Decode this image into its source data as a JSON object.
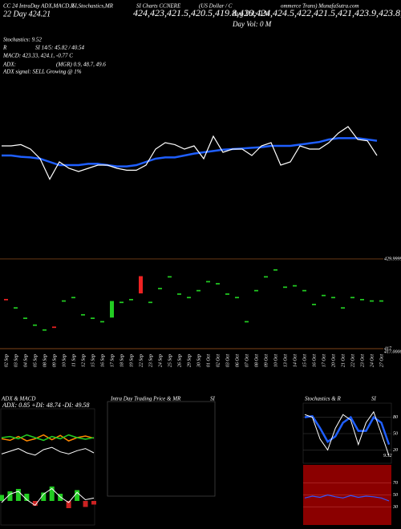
{
  "chart_data": {
    "type": "candlestick",
    "header": [
      "CC 24 IntraDay ADX,MACD,R",
      "SI,Stochastics,MR",
      "SI Charts CCNERE",
      "(US Dollar / C",
      "ommerce Trans) MunafaSutra.com"
    ],
    "day_price": "22 Day 424.21",
    "close": [
      424.0,
      423.0,
      421.5,
      420.5,
      419.8,
      420.0,
      424.0,
      424.5,
      422.0,
      421.5,
      421.0,
      423.9,
      423.8,
      424.2,
      425.0,
      423.8,
      425.8,
      427.5,
      425.0,
      424.5,
      425.5,
      426.8,
      426.5,
      425.0,
      424.5,
      421.0,
      425.5,
      427.5,
      428.5,
      426.0,
      426.2,
      425.5,
      423.5,
      424.8,
      424.5,
      423.0,
      424.5,
      424.2,
      424.0,
      424.0
    ],
    "avg_vol": "Avg Vol: 0  M",
    "day_vol": "Day Vol: 0  M",
    "stats": [
      "Stochastics: 9.52",
      "R",
      "SI 14/5: 45.82 / 40.54",
      "MACD: 423.33, 424.1, -0.77 C",
      "ADX:",
      "(MGR) 0.9, 48.7, 49.6",
      "ADX  signal: SELL Growing @ 1%"
    ],
    "categories": [
      "02 Sep",
      "03 Sep",
      "04 Sep",
      "05 Sep",
      "08 Sep",
      "09 Sep",
      "10 Sep",
      "11 Sep",
      "12 Sep",
      "15 Sep",
      "16 Sep",
      "17 Sep",
      "18 Sep",
      "19 Sep",
      "22 Sep",
      "23 Sep",
      "24 Sep",
      "25 Sep",
      "26 Sep",
      "29 Sep",
      "30 Sep",
      "01 Oct",
      "02 Oct",
      "03 Oct",
      "06 Oct",
      "07 Oct",
      "08 Oct",
      "09 Oct",
      "10 Oct",
      "13 Oct",
      "14 Oct",
      "15 Oct",
      "16 Oct",
      "17 Oct",
      "20 Oct",
      "21 Oct",
      "22 Oct",
      "23 Oct",
      "24 Oct",
      "27 Oct"
    ],
    "price_line": [
      60,
      60,
      62,
      55,
      40,
      8,
      35,
      25,
      20,
      25,
      30,
      30,
      25,
      22,
      22,
      30,
      55,
      65,
      62,
      55,
      60,
      40,
      75,
      50,
      55,
      55,
      45,
      60,
      65,
      30,
      35,
      60,
      55,
      55,
      65,
      80,
      90,
      70,
      68,
      45
    ],
    "ma_line": [
      45,
      45,
      43,
      42,
      40,
      35,
      30,
      30,
      30,
      32,
      32,
      30,
      28,
      28,
      30,
      35,
      40,
      42,
      42,
      45,
      48,
      50,
      52,
      54,
      55,
      56,
      57,
      58,
      60,
      60,
      60,
      62,
      64,
      66,
      70,
      72,
      72,
      72,
      70,
      68
    ],
    "line_ylim": [
      0,
      100
    ],
    "open": [
      424.2,
      422.8,
      421.3,
      420.3,
      419.6,
      420.2,
      423.8,
      424.3,
      421.8,
      421.3,
      420.8,
      421.5,
      423.6,
      424.0,
      427.5,
      423.6,
      425.6,
      427.3,
      424.8,
      424.3,
      425.3,
      426.6,
      426.3,
      424.8,
      424.3,
      420.8,
      425.3,
      427.3,
      428.3,
      425.8,
      426.0,
      425.3,
      423.3,
      424.6,
      424.3,
      422.8,
      424.3,
      424.0,
      423.8,
      423.8
    ],
    "ylim": [
      417,
      429.99999
    ],
    "yticks": [
      429.99999,
      417,
      {
        "value": 417,
        "label": "417.00000"
      }
    ],
    "colors": {
      "price": "#ffffff",
      "ma": "#1f5fff",
      "up": "#22cc22",
      "down": "#ee2222",
      "level": "#8a4a1a"
    },
    "panels": {
      "adx_title": "ADX & MACD",
      "adx_text": "ADX: 0.85 +DI: 48.74 -DI: 49.58",
      "intraday_title": "Intra Day Trading Price & MR",
      "intraday_si": "SI",
      "stoch_title": "Stochastics & R",
      "stoch_si": "SI",
      "plus_di": [
        50,
        52,
        48,
        55,
        50,
        45,
        52,
        48,
        55,
        50,
        47,
        50
      ],
      "minus_di": [
        48,
        45,
        52,
        44,
        48,
        55,
        46,
        54,
        44,
        50,
        53,
        49
      ],
      "adx": [
        20,
        25,
        30,
        22,
        18,
        28,
        32,
        24,
        20,
        26,
        30,
        22
      ],
      "macd": [
        40,
        55,
        60,
        45,
        35,
        55,
        65,
        50,
        40,
        58,
        45,
        48
      ],
      "hist": [
        5,
        8,
        10,
        6,
        -4,
        7,
        12,
        6,
        -6,
        9,
        -5,
        -3
      ],
      "stoch_k": [
        85,
        80,
        40,
        20,
        60,
        85,
        75,
        30,
        70,
        90,
        50,
        9.52
      ],
      "stoch_d": [
        80,
        82,
        60,
        35,
        45,
        70,
        80,
        55,
        55,
        80,
        70,
        30
      ],
      "rsi": [
        45,
        48,
        46,
        50,
        47,
        45,
        49,
        46,
        48,
        47,
        45,
        40
      ],
      "stoch_ticks": [
        80,
        50,
        20
      ],
      "rsi_ticks": [
        70,
        50,
        30
      ],
      "stoch_value": "9.52"
    }
  }
}
